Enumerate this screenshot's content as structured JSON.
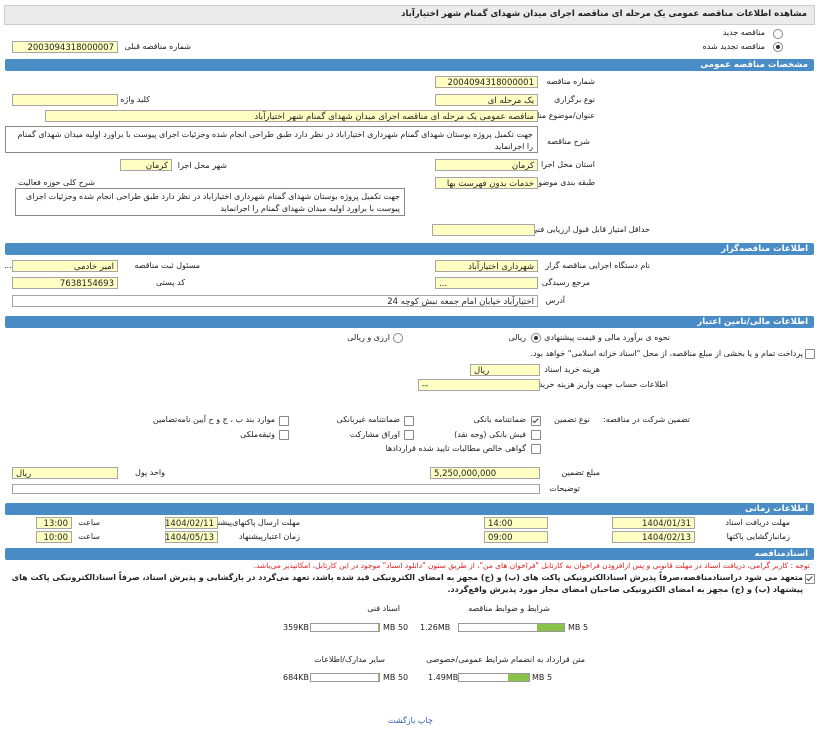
{
  "header": {
    "title": "مشاهده اطلاعات مناقصه عمومی یک مرحله ای مناقصه اجرای میدان شهدای گمنام شهر اختیارآباد"
  },
  "tender_type": {
    "new": "مناقصه جدید",
    "renewed": "مناقصه تجدید شده",
    "previous_number_label": "شماره مناقصه قبلی",
    "previous_number": "2003094318000007"
  },
  "general": {
    "section_title": "مشخصات مناقصه عمومی",
    "number_label": "شماره مناقصه",
    "number": "2004094318000001",
    "holding_type_label": "نوع برگزاری",
    "holding_type": "یک مرحله ای",
    "keyword_label": "کلید واژه",
    "subject_label": "عنوان/موضوع مناقصه",
    "subject": "مناقصه عمومی یک مرحله ای مناقصه اجرای میدان شهدای گمنام شهر اختیارآباد",
    "description_label": "شرح مناقصه",
    "description": "جهت تکمیل پروژه بوستان شهدای گمنام شهرداری اختیاراباد در نظر دارد طبق طراحی انجام شده وجزئیات اجرای پیوست با براورد اولیه میدان شهدای گمنام را اجرانماید",
    "province_label": "استان محل اجرا",
    "province": "کرمان",
    "city_label": "شهر محل اجرا",
    "city": "کرمان",
    "category_label": "طبقه بندی موضوعی",
    "category": "خدمات بدون فهرست بها",
    "activity_label": "شرح کلی حوزه فعالیت",
    "activity": "جهت تکمیل پروژه بوستان شهدای گمنام شهرداری اختیاراباد در نظر دارد طبق طراحی انجام شده وجزئیات اجرای پیوست با براورد اولیه میدان شهدای گمنام را اجرانماید",
    "min_score_label": "حداقل امتیاز قابل قبول ارزیابی فنی/بازرگانی"
  },
  "organizer": {
    "section_title": "اطلاعات مناقصه‌گزار",
    "agency_label": "نام دستگاه اجرایی مناقصه گزار",
    "agency": "شهرداری اختیارآباد",
    "registrar_label": "مسئول ثبت مناقصه",
    "registrar": "امیر خادمی",
    "registrar_more": "...",
    "authority_label": "مرجع رسیدگی",
    "authority": "...",
    "postal_code_label": "کد پستی",
    "postal_code": "7638154693",
    "address_label": "آدرس",
    "address": "اختیارآباد خیابان امام جمعه نبش کوچه 24"
  },
  "financial": {
    "section_title": "اطلاعات مالی/تامین اعتبار",
    "estimate_label": "نحوه ی برآورد مالی و قیمت پیشنهادی",
    "rial": "ریالی",
    "currency_rial": "ارزی و ریالی",
    "treasury": "پرداخت تمام و یا بخشی از مبلغ مناقصه، از محل \"اسناد خزانه اسلامی\" خواهد بود.",
    "doc_cost_label": "هزینه خرید اسناد",
    "doc_cost_unit": "ریال",
    "account_label": "اطلاعات حساب جهت واریز هزینه خرید اسناد",
    "account": "--",
    "guarantee_label": "تضمین شرکت در مناقصه:",
    "guarantee_type_label": "نوع تضمین",
    "guarantee_types": [
      "ضمانتنامه بانکی",
      "ضمانتنامه غیربانکی",
      "موارد بند ب ، ج و ح آیین نامه‌تضامین",
      "فیش بانکی (وجه نقد)",
      "اوراق مشارکت",
      "وثیقه‌ملکی",
      "گواهی خالص مطالبات تایید شده قراردادها"
    ],
    "guarantee_amount_label": "مبلغ تضمین",
    "guarantee_amount": "5,250,000,000",
    "currency_label": "واحد پول",
    "currency": "ریال",
    "notes_label": "توضیحات"
  },
  "timing": {
    "section_title": "اطلاعات زمانی",
    "receive_docs_label": "مهلت دریافت اسناد",
    "receive_docs_date": "1404/01/31",
    "receive_docs_time": "14:00",
    "submit_label": "مهلت ارسال پاکتهای‌پیشنهاد",
    "submit_date": "1404/02/11",
    "submit_time": "13:00",
    "opening_label": "زمانبازگشایی پاکتها",
    "opening_date": "1404/02/13",
    "opening_time": "09:00",
    "validity_label": "زمان اعتبارپیشنهاد",
    "validity_date": "1404/05/13",
    "validity_time": "10:00",
    "time_label": "ساعت"
  },
  "documents": {
    "section_title": "اسنادمناقصه",
    "note": "توجه : کاربر گرامی، دریافت اسناد در مهلت قانونی و پس ازافزودن فراخوان به کارتابل \"فراخوان های من\"، از طریق ستون \"دانلود اسناد\" موجود در این کارتابل، امکانپذیر می‌باشد.",
    "commitment": "متعهد می شود دراسنادمناقصه،صرفاً پذیرش اسنادالکترونیکی پاکت های (ب) و (ج) مجهز به امضای الکترونیکی قید شده باشد، تعهد می‌گردد در بازگشایی و پذیرش اسناد، صرفاً اسنادالکترونیکی پاکت های پیشنهاد (ب) و (ج) مجهز به امضای الکترونیکی صاحبان امضای مجاز مورد پذیرش واقع‌گردد.",
    "files": [
      {
        "label": "شرایط و ضوابط مناقصه",
        "size": "1.26MB",
        "max": "5 MB"
      },
      {
        "label": "اسناد فنی",
        "size": "359KB",
        "max": "50 MB"
      },
      {
        "label": "متن قرارداد به انضمام شرایط عمومی/خصوصی",
        "size": "1.49MB",
        "max": "5 MB"
      },
      {
        "label": "سایر مدارک/اطلاعات",
        "size": "684KB",
        "max": "50 MB"
      }
    ]
  },
  "footer": {
    "print_back": "چاپ بازگشت"
  }
}
